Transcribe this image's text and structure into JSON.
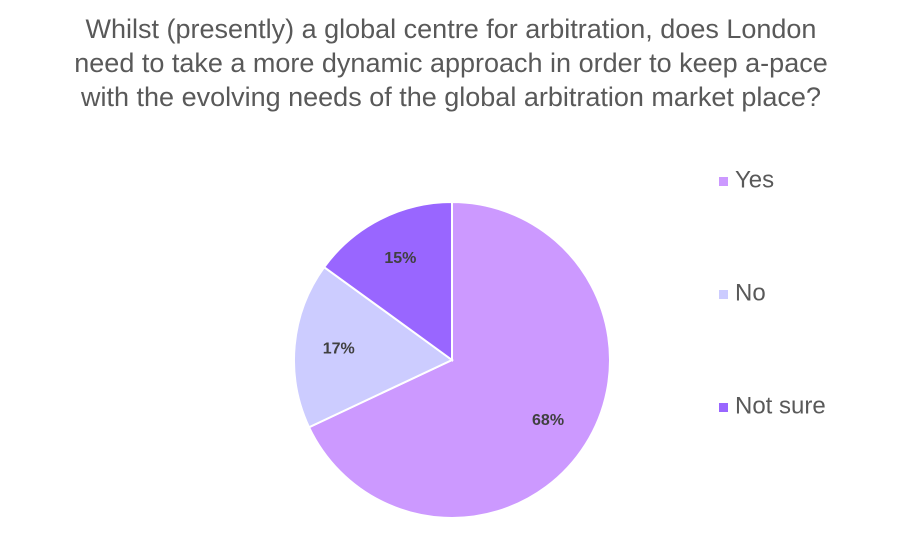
{
  "chart_data": {
    "type": "pie",
    "title": "Whilst (presently) a global centre for arbitration, does London need to take a more dynamic approach in order to keep a-pace with the evolving needs of the global arbitration market place?",
    "categories": [
      "Yes",
      "No",
      "Not sure"
    ],
    "values": [
      68,
      17,
      15
    ],
    "value_labels": [
      "68%",
      "17%",
      "15%"
    ],
    "colors": [
      "#cc99ff",
      "#ccccff",
      "#9966ff"
    ],
    "legend": "right"
  }
}
